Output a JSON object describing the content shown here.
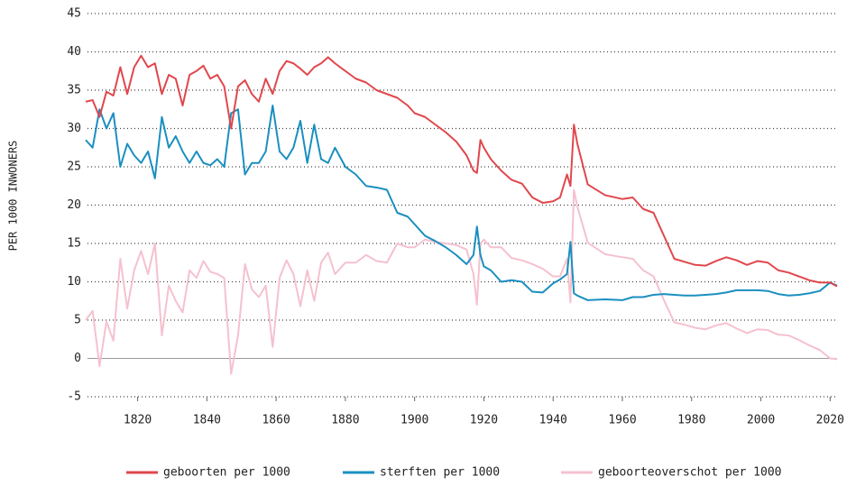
{
  "chart_data": {
    "type": "line",
    "y_label": "PER 1000 INWONERS",
    "x": [
      1805,
      1807,
      1809,
      1811,
      1813,
      1815,
      1817,
      1819,
      1821,
      1823,
      1825,
      1827,
      1829,
      1831,
      1833,
      1835,
      1837,
      1839,
      1841,
      1843,
      1845,
      1847,
      1849,
      1851,
      1853,
      1855,
      1857,
      1859,
      1861,
      1863,
      1865,
      1867,
      1869,
      1871,
      1873,
      1875,
      1877,
      1880,
      1883,
      1886,
      1889,
      1892,
      1895,
      1898,
      1900,
      1903,
      1906,
      1909,
      1912,
      1915,
      1917,
      1918,
      1919,
      1920,
      1922,
      1925,
      1928,
      1931,
      1934,
      1937,
      1940,
      1942,
      1944,
      1945,
      1946,
      1947,
      1950,
      1955,
      1960,
      1963,
      1966,
      1969,
      1972,
      1975,
      1978,
      1981,
      1984,
      1987,
      1990,
      1993,
      1996,
      1999,
      2002,
      2005,
      2008,
      2011,
      2014,
      2017,
      2020,
      2022
    ],
    "series": [
      {
        "name": "geboorten per 1000",
        "color": "#e0474c",
        "values": [
          33.5,
          33.7,
          31.5,
          34.8,
          34.3,
          38,
          34.5,
          38,
          39.5,
          38,
          38.5,
          34.5,
          37,
          36.5,
          33,
          37,
          37.5,
          38.2,
          36.5,
          37,
          35.5,
          30,
          35.5,
          36.3,
          34.5,
          33.5,
          36.5,
          34.5,
          37.5,
          38.8,
          38.5,
          37.8,
          37,
          38,
          38.5,
          39.3,
          38.5,
          37.5,
          36.5,
          36,
          35,
          34.5,
          34,
          33,
          32,
          31.5,
          30.5,
          29.5,
          28.3,
          26.5,
          24.5,
          24.2,
          28.5,
          27.5,
          26,
          24.5,
          23.3,
          22.8,
          21,
          20.3,
          20.5,
          21,
          24,
          22.5,
          30.5,
          28,
          22.7,
          21.3,
          20.8,
          21,
          19.5,
          19,
          16,
          13,
          12.6,
          12.2,
          12.1,
          12.7,
          13.2,
          12.8,
          12.2,
          12.7,
          12.5,
          11.5,
          11.2,
          10.7,
          10.2,
          9.9,
          9.9,
          9.4
        ]
      },
      {
        "name": "sterften per 1000",
        "color": "#1a8fc0",
        "values": [
          28.5,
          27.5,
          32.5,
          30,
          32,
          25,
          28,
          26.5,
          25.5,
          27,
          23.5,
          31.5,
          27.5,
          29,
          27,
          25.5,
          27,
          25.5,
          25.2,
          26,
          25,
          32,
          32.5,
          24,
          25.5,
          25.5,
          27,
          33,
          27,
          26,
          27.5,
          31,
          25.5,
          30.5,
          26,
          25.5,
          27.5,
          25,
          24,
          22.5,
          22.3,
          22,
          19,
          18.5,
          17.5,
          16,
          15.3,
          14.5,
          13.5,
          12.3,
          13.5,
          17.2,
          13.5,
          12,
          11.5,
          10,
          10.2,
          10,
          8.7,
          8.6,
          9.8,
          10.3,
          11,
          15.2,
          8.5,
          8.2,
          7.6,
          7.7,
          7.6,
          8,
          8,
          8.3,
          8.4,
          8.3,
          8.2,
          8.2,
          8.3,
          8.4,
          8.6,
          8.9,
          8.9,
          8.9,
          8.8,
          8.4,
          8.2,
          8.3,
          8.5,
          8.8,
          9.9,
          9.5
        ]
      },
      {
        "name": "geboorteoverschot per 1000",
        "color": "#f5c1cf",
        "values": [
          5,
          6.2,
          -1,
          4.8,
          2.3,
          13,
          6.5,
          11.5,
          14,
          11,
          15,
          3,
          9.5,
          7.5,
          6,
          11.5,
          10.5,
          12.7,
          11.3,
          11,
          10.5,
          -2,
          3,
          12.3,
          9,
          8,
          9.5,
          1.5,
          10.5,
          12.8,
          11,
          6.8,
          11.5,
          7.5,
          12.5,
          13.8,
          11,
          12.5,
          12.5,
          13.5,
          12.7,
          12.5,
          15,
          14.5,
          14.5,
          15.5,
          15.2,
          15,
          14.8,
          14.2,
          11,
          7,
          15,
          15.5,
          14.5,
          14.5,
          13.1,
          12.8,
          12.3,
          11.7,
          10.7,
          10.7,
          13,
          7.3,
          22,
          19.8,
          15.1,
          13.6,
          13.2,
          13,
          11.5,
          10.7,
          7.6,
          4.7,
          4.4,
          4,
          3.8,
          4.3,
          4.6,
          3.9,
          3.3,
          3.8,
          3.7,
          3.1,
          3,
          2.4,
          1.7,
          1.1,
          0,
          -0.1
        ]
      }
    ],
    "xlim": [
      1805,
      2022
    ],
    "xticks": [
      1820,
      1840,
      1860,
      1880,
      1900,
      1920,
      1940,
      1960,
      1980,
      2000,
      2020
    ],
    "ylim": [
      -5,
      45
    ],
    "yticks": [
      -5,
      0,
      5,
      10,
      15,
      20,
      25,
      30,
      35,
      40,
      45
    ],
    "grid": true,
    "legend": "bottom"
  }
}
